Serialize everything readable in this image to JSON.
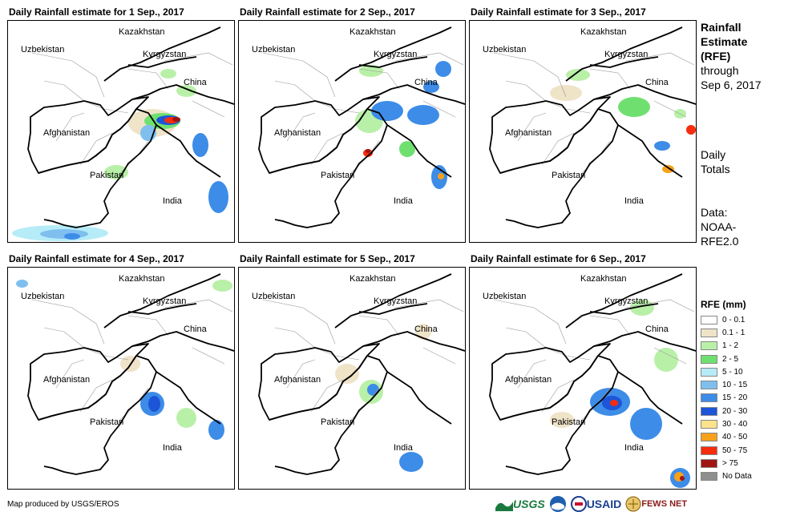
{
  "panels": [
    {
      "title": "Daily Rainfall estimate for 1 Sep., 2017",
      "day": 1
    },
    {
      "title": "Daily Rainfall estimate for 2 Sep., 2017",
      "day": 2
    },
    {
      "title": "Daily Rainfall estimate for 3 Sep., 2017",
      "day": 3
    },
    {
      "title": "Daily Rainfall estimate for 4 Sep., 2017",
      "day": 4
    },
    {
      "title": "Daily Rainfall estimate for 5 Sep., 2017",
      "day": 5
    },
    {
      "title": "Daily Rainfall estimate for 6 Sep., 2017",
      "day": 6
    }
  ],
  "map_labels": {
    "kazakhstan": "Kazakhstan",
    "uzbekistan": "Uzbekistan",
    "kyrgyzstan": "Kyrgyzstan",
    "china": "China",
    "afghanistan": "Afghanistan",
    "pakistan": "Pakistan",
    "india": "India"
  },
  "side": {
    "title_line1": "Rainfall",
    "title_line2": "Estimate",
    "title_line3": "(RFE)",
    "through": "through",
    "date": "Sep 6, 2017",
    "daily1": "Daily",
    "daily2": "Totals",
    "data1": "Data:",
    "data2": "NOAA-",
    "data3": "RFE2.0"
  },
  "legend": {
    "title": "RFE (mm)",
    "items": [
      {
        "label": "0 - 0.1",
        "color": "#ffffff"
      },
      {
        "label": "0.1 - 1",
        "color": "#efe3c8"
      },
      {
        "label": "1 - 2",
        "color": "#b9f0a8"
      },
      {
        "label": "2 - 5",
        "color": "#6fe06f"
      },
      {
        "label": "5 - 10",
        "color": "#b6ecf7"
      },
      {
        "label": "10 - 15",
        "color": "#7fbff0"
      },
      {
        "label": "15 - 20",
        "color": "#3d8ce8"
      },
      {
        "label": "20 - 30",
        "color": "#1d55d8"
      },
      {
        "label": "30 - 40",
        "color": "#fce38a"
      },
      {
        "label": "40 - 50",
        "color": "#f7a11a"
      },
      {
        "label": "50 - 75",
        "color": "#f52d0d"
      },
      {
        "label": "> 75",
        "color": "#a11414"
      },
      {
        "label": "No Data",
        "color": "#8f8f8f"
      }
    ]
  },
  "credit": "Map produced by USGS/EROS",
  "logos": {
    "usgs": "USGS",
    "usaid": "USAID",
    "fewsnet": "FEWS NET"
  }
}
